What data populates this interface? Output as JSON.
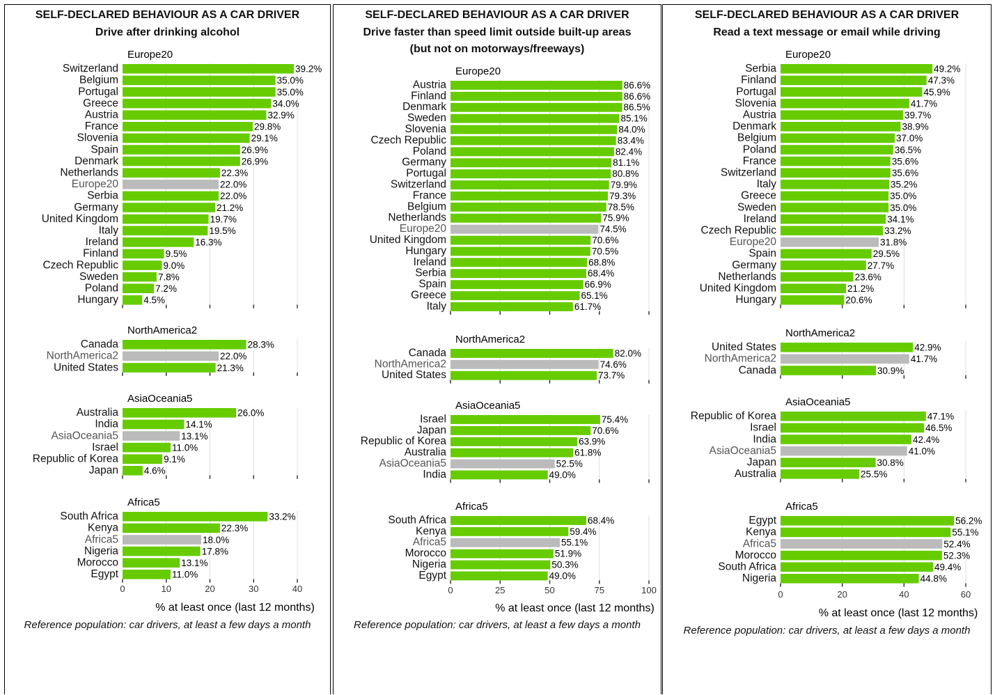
{
  "header": "SELF-DECLARED BEHAVIOUR AS A CAR DRIVER",
  "xlabel": "% at least once (last 12 months)",
  "note": "Reference population: car drivers, at least a few days a month",
  "colors": {
    "bar": "#66cc00",
    "aggregate": "#bbbbbb",
    "grid": "#dddddd"
  },
  "chart_data": [
    {
      "type": "bar",
      "orientation": "horizontal",
      "title": "SELF-DECLARED BEHAVIOUR AS A CAR DRIVER",
      "subtitle": [
        "Drive after drinking alcohol"
      ],
      "xlabel": "% at least once (last 12 months)",
      "xlim": [
        0,
        40
      ],
      "xticks": [
        0,
        10,
        20,
        30,
        40
      ],
      "groups": [
        {
          "name": "Europe20",
          "categories": [
            "Switzerland",
            "Belgium",
            "Portugal",
            "Greece",
            "Austria",
            "France",
            "Slovenia",
            "Spain",
            "Denmark",
            "Netherlands",
            "Europe20",
            "Serbia",
            "Germany",
            "United Kingdom",
            "Italy",
            "Ireland",
            "Finland",
            "Czech Republic",
            "Sweden",
            "Poland",
            "Hungary"
          ],
          "values": [
            39.2,
            35.0,
            35.0,
            34.0,
            32.9,
            29.8,
            29.1,
            26.9,
            26.9,
            22.3,
            22.0,
            22.0,
            21.2,
            19.7,
            19.5,
            16.3,
            9.5,
            9.0,
            7.8,
            7.2,
            4.5
          ],
          "labels": [
            "39.2%",
            "35.0%",
            "35.0%",
            "34.0%",
            "32.9%",
            "29.8%",
            "29.1%",
            "26.9%",
            "26.9%",
            "22.3%",
            "22.0%",
            "22.0%",
            "21.2%",
            "19.7%",
            "19.5%",
            "16.3%",
            "9.5%",
            "9.0%",
            "7.8%",
            "7.2%",
            "4.5%"
          ]
        },
        {
          "name": "NorthAmerica2",
          "categories": [
            "Canada",
            "NorthAmerica2",
            "United States"
          ],
          "values": [
            28.3,
            22.0,
            21.3
          ],
          "labels": [
            "28.3%",
            "22.0%",
            "21.3%"
          ]
        },
        {
          "name": "AsiaOceania5",
          "categories": [
            "Australia",
            "India",
            "AsiaOceania5",
            "Israel",
            "Republic of Korea",
            "Japan"
          ],
          "values": [
            26.0,
            14.1,
            13.1,
            11.0,
            9.1,
            4.6
          ],
          "labels": [
            "26.0%",
            "14.1%",
            "13.1%",
            "11.0%",
            "9.1%",
            "4.6%"
          ]
        },
        {
          "name": "Africa5",
          "categories": [
            "South Africa",
            "Kenya",
            "Africa5",
            "Nigeria",
            "Morocco",
            "Egypt"
          ],
          "values": [
            33.2,
            22.3,
            18.0,
            17.8,
            13.1,
            11.0
          ],
          "labels": [
            "33.2%",
            "22.3%",
            "18.0%",
            "17.8%",
            "13.1%",
            "11.0%"
          ]
        }
      ]
    },
    {
      "type": "bar",
      "orientation": "horizontal",
      "title": "SELF-DECLARED BEHAVIOUR AS A CAR DRIVER",
      "subtitle": [
        "Drive faster than speed limit outside built-up areas",
        "(but not on motorways/freeways)"
      ],
      "xlabel": "% at least once (last 12 months)",
      "xlim": [
        0,
        100
      ],
      "xticks": [
        0,
        25,
        50,
        75,
        100
      ],
      "groups": [
        {
          "name": "Europe20",
          "categories": [
            "Austria",
            "Finland",
            "Denmark",
            "Sweden",
            "Slovenia",
            "Czech Republic",
            "Poland",
            "Germany",
            "Portugal",
            "Switzerland",
            "France",
            "Belgium",
            "Netherlands",
            "Europe20",
            "United Kingdom",
            "Hungary",
            "Ireland",
            "Serbia",
            "Spain",
            "Greece",
            "Italy"
          ],
          "values": [
            86.6,
            86.6,
            86.5,
            85.1,
            84.0,
            83.4,
            82.4,
            81.1,
            80.8,
            79.9,
            79.3,
            78.5,
            75.9,
            74.5,
            70.6,
            70.5,
            68.8,
            68.4,
            66.9,
            65.1,
            61.7
          ],
          "labels": [
            "86.6%",
            "86.6%",
            "86.5%",
            "85.1%",
            "84.0%",
            "83.4%",
            "82.4%",
            "81.1%",
            "80.8%",
            "79.9%",
            "79.3%",
            "78.5%",
            "75.9%",
            "74.5%",
            "70.6%",
            "70.5%",
            "68.8%",
            "68.4%",
            "66.9%",
            "65.1%",
            "61.7%"
          ]
        },
        {
          "name": "NorthAmerica2",
          "categories": [
            "Canada",
            "NorthAmerica2",
            "United States"
          ],
          "values": [
            82.0,
            74.6,
            73.7
          ],
          "labels": [
            "82.0%",
            "74.6%",
            "73.7%"
          ]
        },
        {
          "name": "AsiaOceania5",
          "categories": [
            "Israel",
            "Japan",
            "Republic of Korea",
            "Australia",
            "AsiaOceania5",
            "India"
          ],
          "values": [
            75.4,
            70.6,
            63.9,
            61.8,
            52.5,
            49.0
          ],
          "labels": [
            "75.4%",
            "70.6%",
            "63.9%",
            "61.8%",
            "52.5%",
            "49.0%"
          ]
        },
        {
          "name": "Africa5",
          "categories": [
            "South Africa",
            "Kenya",
            "Africa5",
            "Morocco",
            "Nigeria",
            "Egypt"
          ],
          "values": [
            68.4,
            59.4,
            55.1,
            51.9,
            50.3,
            49.0
          ],
          "labels": [
            "68.4%",
            "59.4%",
            "55.1%",
            "51.9%",
            "50.3%",
            "49.0%"
          ]
        }
      ]
    },
    {
      "type": "bar",
      "orientation": "horizontal",
      "title": "SELF-DECLARED BEHAVIOUR AS A CAR DRIVER",
      "subtitle": [
        "Read a text message or email while driving"
      ],
      "xlabel": "% at least once (last 12 months)",
      "xlim": [
        0,
        60
      ],
      "xticks": [
        0,
        20,
        40,
        60
      ],
      "groups": [
        {
          "name": "Europe20",
          "categories": [
            "Serbia",
            "Finland",
            "Portugal",
            "Slovenia",
            "Austria",
            "Denmark",
            "Belgium",
            "Poland",
            "France",
            "Switzerland",
            "Italy",
            "Greece",
            "Sweden",
            "Ireland",
            "Czech Republic",
            "Europe20",
            "Spain",
            "Germany",
            "Netherlands",
            "United Kingdom",
            "Hungary"
          ],
          "values": [
            49.2,
            47.3,
            45.9,
            41.7,
            39.7,
            38.9,
            37.0,
            36.5,
            35.6,
            35.6,
            35.2,
            35.0,
            35.0,
            34.1,
            33.2,
            31.8,
            29.5,
            27.7,
            23.6,
            21.2,
            20.6
          ],
          "labels": [
            "49.2%",
            "47.3%",
            "45.9%",
            "41.7%",
            "39.7%",
            "38.9%",
            "37.0%",
            "36.5%",
            "35.6%",
            "35.6%",
            "35.2%",
            "35.0%",
            "35.0%",
            "34.1%",
            "33.2%",
            "31.8%",
            "29.5%",
            "27.7%",
            "23.6%",
            "21.2%",
            "20.6%"
          ]
        },
        {
          "name": "NorthAmerica2",
          "categories": [
            "United States",
            "NorthAmerica2",
            "Canada"
          ],
          "values": [
            42.9,
            41.7,
            30.9
          ],
          "labels": [
            "42.9%",
            "41.7%",
            "30.9%"
          ]
        },
        {
          "name": "AsiaOceania5",
          "categories": [
            "Republic of Korea",
            "Israel",
            "India",
            "AsiaOceania5",
            "Japan",
            "Australia"
          ],
          "values": [
            47.1,
            46.5,
            42.4,
            41.0,
            30.8,
            25.5
          ],
          "labels": [
            "47.1%",
            "46.5%",
            "42.4%",
            "41.0%",
            "30.8%",
            "25.5%"
          ]
        },
        {
          "name": "Africa5",
          "categories": [
            "Egypt",
            "Kenya",
            "Africa5",
            "Morocco",
            "South Africa",
            "Nigeria"
          ],
          "values": [
            56.2,
            55.1,
            52.4,
            52.3,
            49.4,
            44.8
          ],
          "labels": [
            "56.2%",
            "55.1%",
            "52.4%",
            "52.3%",
            "49.4%",
            "44.8%"
          ]
        }
      ]
    }
  ]
}
